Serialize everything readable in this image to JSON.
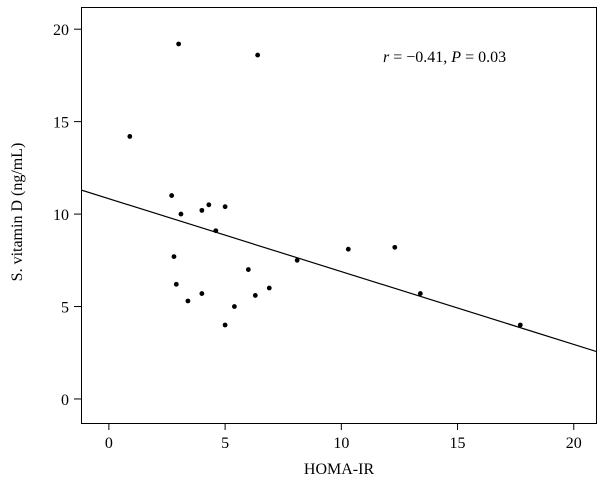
{
  "chart_data": {
    "type": "scatter",
    "title": "",
    "xlabel": "HOMA-IR",
    "ylabel": "S. vitamin D (ng/mL)",
    "xlim": [
      -1.2,
      21
    ],
    "ylim": [
      -1.3,
      21.2
    ],
    "xticks": [
      0,
      5,
      10,
      15,
      20
    ],
    "yticks": [
      0,
      5,
      10,
      15,
      20
    ],
    "grid": false,
    "annotation": {
      "r_symbol": "r",
      "eq1": " = −0.41, ",
      "p_symbol": "P",
      "eq2": " = 0.03"
    },
    "trendline": {
      "slope": -0.394,
      "intercept": 10.83
    },
    "points": [
      {
        "x": 0.9,
        "y": 14.2
      },
      {
        "x": 2.7,
        "y": 11.0
      },
      {
        "x": 3.0,
        "y": 19.2
      },
      {
        "x": 3.1,
        "y": 10.0
      },
      {
        "x": 4.0,
        "y": 10.2
      },
      {
        "x": 4.3,
        "y": 10.5
      },
      {
        "x": 5.0,
        "y": 10.4
      },
      {
        "x": 4.6,
        "y": 9.1
      },
      {
        "x": 2.8,
        "y": 7.7
      },
      {
        "x": 2.9,
        "y": 6.2
      },
      {
        "x": 3.4,
        "y": 5.3
      },
      {
        "x": 4.0,
        "y": 5.7
      },
      {
        "x": 5.4,
        "y": 5.0
      },
      {
        "x": 5.0,
        "y": 4.0
      },
      {
        "x": 6.0,
        "y": 7.0
      },
      {
        "x": 6.3,
        "y": 5.6
      },
      {
        "x": 6.9,
        "y": 6.0
      },
      {
        "x": 6.4,
        "y": 18.6
      },
      {
        "x": 8.1,
        "y": 7.5
      },
      {
        "x": 10.3,
        "y": 8.1
      },
      {
        "x": 12.3,
        "y": 8.2
      },
      {
        "x": 13.4,
        "y": 5.7
      },
      {
        "x": 17.7,
        "y": 4.0
      }
    ]
  }
}
